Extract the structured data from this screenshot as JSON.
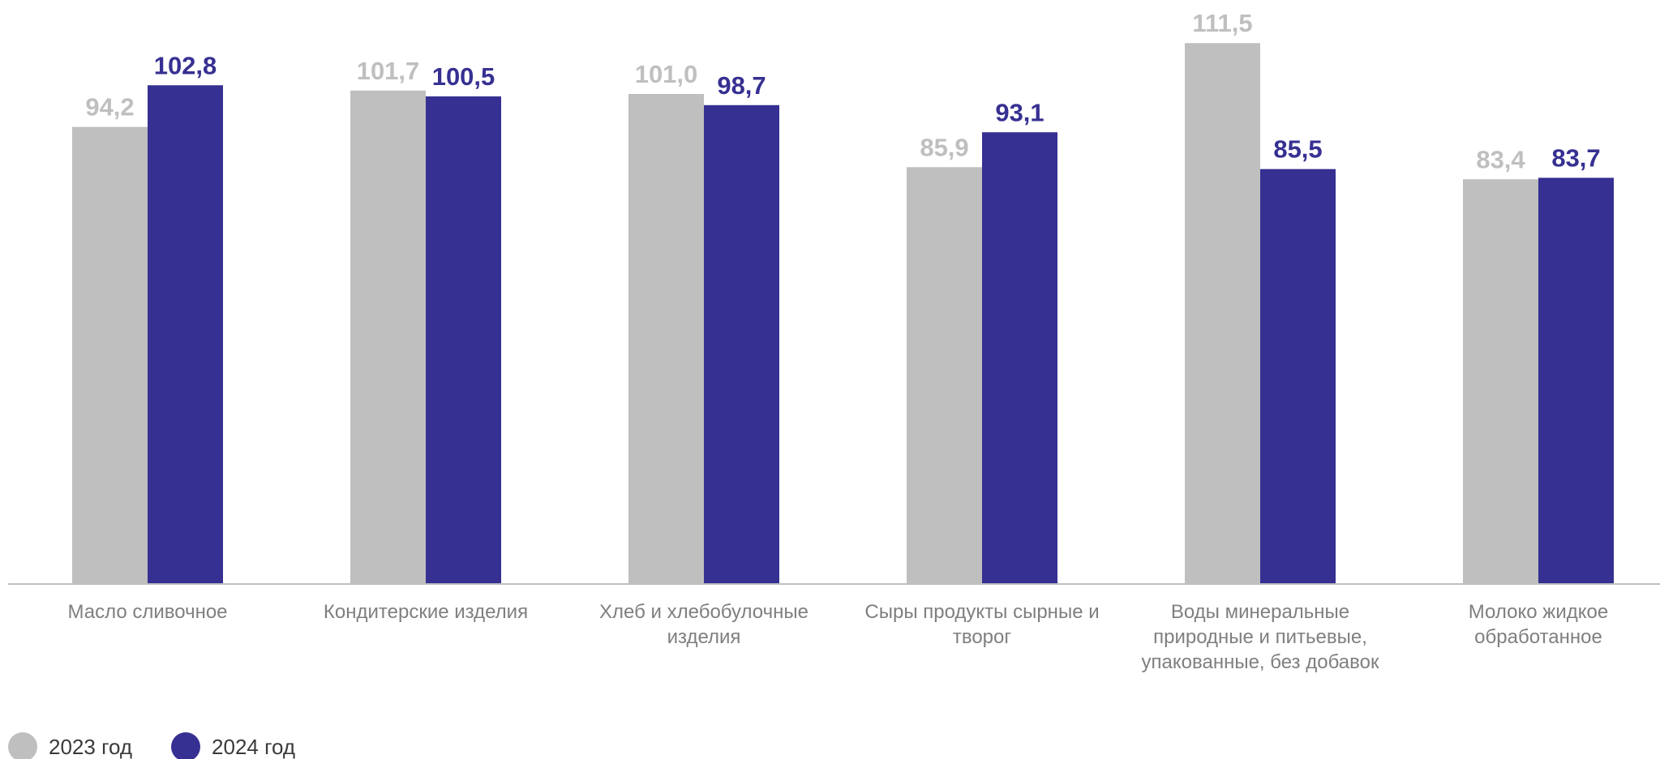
{
  "chart_data": {
    "type": "bar",
    "categories": [
      [
        "Масло сливочное"
      ],
      [
        "Кондитерские изделия"
      ],
      [
        "Хлеб и хлебобулочные",
        "изделия"
      ],
      [
        "Сыры продукты сырные и",
        "творог"
      ],
      [
        "Воды минеральные",
        "природные и питьевые,",
        "упакованные, без добавок"
      ],
      [
        "Молоко жидкое",
        "обработанное"
      ]
    ],
    "series": [
      {
        "name": "2023 год",
        "color": "#bfbfbf",
        "values": [
          94.2,
          101.7,
          101.0,
          85.9,
          111.5,
          83.4
        ],
        "labels": [
          "94,2",
          "101,7",
          "101,0",
          "85,9",
          "111,5",
          "83,4"
        ]
      },
      {
        "name": "2024 год",
        "color": "#363092",
        "values": [
          102.8,
          100.5,
          98.7,
          93.1,
          85.5,
          83.7
        ],
        "labels": [
          "102,8",
          "100,5",
          "98,7",
          "93,1",
          "85,5",
          "83,7"
        ]
      }
    ],
    "ylim": [
      0,
      120
    ],
    "grid": false,
    "legend_position": "bottom-left"
  }
}
